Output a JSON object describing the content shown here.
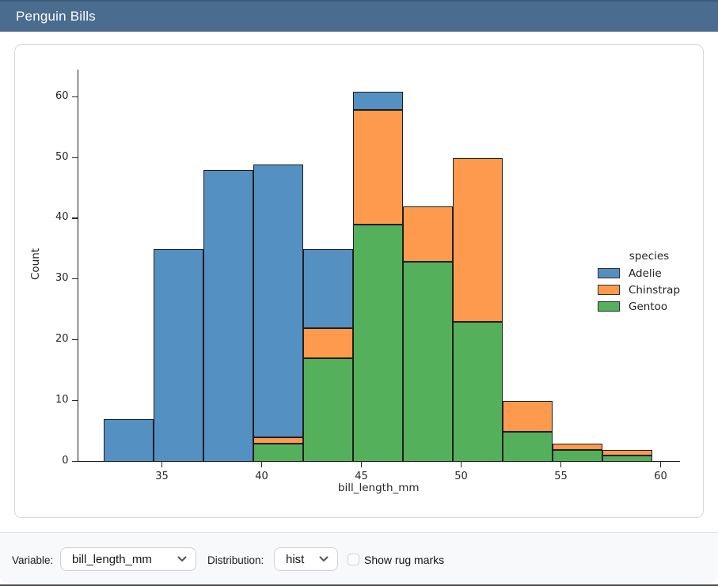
{
  "navbar": {
    "title": "Penguin Bills"
  },
  "controls": {
    "variable_label": "Variable:",
    "variable": {
      "value": "bill_length_mm"
    },
    "distribution_label": "Distribution:",
    "distribution": {
      "value": "hist"
    },
    "rug": {
      "label": "Show rug marks",
      "checked": false
    }
  },
  "colors": {
    "navbar_bg": "#4a6c8e",
    "adelie": "#5490c2",
    "chinstrap": "#fd9a4e",
    "gentoo": "#55b05b",
    "bar_edge": "#1e1e1e"
  },
  "chart_data": {
    "type": "bar",
    "variant": "stacked-histogram",
    "title": "",
    "xlabel": "bill_length_mm",
    "ylabel": "Count",
    "x_ticks": [
      35,
      40,
      45,
      50,
      55,
      60
    ],
    "y_ticks": [
      0,
      10,
      20,
      30,
      40,
      50,
      60
    ],
    "xlim": [
      30.7,
      61.0
    ],
    "ylim": [
      0,
      64
    ],
    "grid": false,
    "bin_edges": [
      32.1,
      34.6,
      37.1,
      39.6,
      42.1,
      44.6,
      47.1,
      49.6,
      52.1,
      54.6,
      57.1,
      59.6
    ],
    "stack_order_bottom_to_top": [
      "Gentoo",
      "Chinstrap",
      "Adelie"
    ],
    "series": [
      {
        "name": "Adelie",
        "color": "#5490c2",
        "values": [
          7,
          35,
          48,
          45,
          13,
          3,
          0,
          0,
          0,
          0,
          0
        ]
      },
      {
        "name": "Chinstrap",
        "color": "#fd9a4e",
        "values": [
          0,
          0,
          0,
          1,
          5,
          19,
          9,
          27,
          5,
          1,
          1
        ]
      },
      {
        "name": "Gentoo",
        "color": "#55b05b",
        "values": [
          0,
          0,
          0,
          3,
          17,
          39,
          33,
          23,
          5,
          2,
          1
        ]
      }
    ],
    "bin_totals": [
      7,
      35,
      48,
      49,
      35,
      61,
      42,
      50,
      10,
      3,
      2
    ],
    "legend": {
      "title": "species",
      "position": "right",
      "entries": [
        {
          "label": "Adelie",
          "color": "#5490c2"
        },
        {
          "label": "Chinstrap",
          "color": "#fd9a4e"
        },
        {
          "label": "Gentoo",
          "color": "#55b05b"
        }
      ]
    }
  }
}
